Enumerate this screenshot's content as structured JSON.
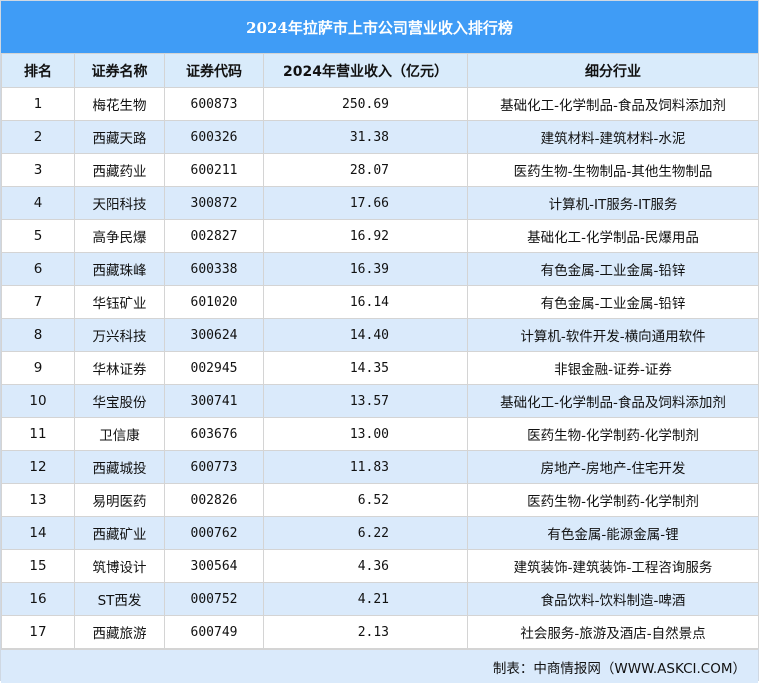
{
  "title": "2024年拉萨市上市公司营业收入排行榜",
  "columns": [
    "排名",
    "证券名称",
    "证券代码",
    "2024年营业收入（亿元）",
    "细分行业"
  ],
  "rows": [
    [
      "1",
      "梅花生物",
      "600873",
      "250.69",
      "基础化工-化学制品-食品及饲料添加剂"
    ],
    [
      "2",
      "西藏天路",
      "600326",
      "31.38",
      "建筑材料-建筑材料-水泥"
    ],
    [
      "3",
      "西藏药业",
      "600211",
      "28.07",
      "医药生物-生物制品-其他生物制品"
    ],
    [
      "4",
      "天阳科技",
      "300872",
      "17.66",
      "计算机-IT服务-IT服务"
    ],
    [
      "5",
      "高争民爆",
      "002827",
      "16.92",
      "基础化工-化学制品-民爆用品"
    ],
    [
      "6",
      "西藏珠峰",
      "600338",
      "16.39",
      "有色金属-工业金属-铅锌"
    ],
    [
      "7",
      "华钰矿业",
      "601020",
      "16.14",
      "有色金属-工业金属-铅锌"
    ],
    [
      "8",
      "万兴科技",
      "300624",
      "14.40",
      "计算机-软件开发-横向通用软件"
    ],
    [
      "9",
      "华林证券",
      "002945",
      "14.35",
      "非银金融-证券-证券"
    ],
    [
      "10",
      "华宝股份",
      "300741",
      "13.57",
      "基础化工-化学制品-食品及饲料添加剂"
    ],
    [
      "11",
      "卫信康",
      "603676",
      "13.00",
      "医药生物-化学制药-化学制剂"
    ],
    [
      "12",
      "西藏城投",
      "600773",
      "11.83",
      "房地产-房地产-住宅开发"
    ],
    [
      "13",
      "易明医药",
      "002826",
      "6.52",
      "医药生物-化学制药-化学制剂"
    ],
    [
      "14",
      "西藏矿业",
      "000762",
      "6.22",
      "有色金属-能源金属-锂"
    ],
    [
      "15",
      "筑博设计",
      "300564",
      "4.36",
      "建筑装饰-建筑装饰-工程咨询服务"
    ],
    [
      "16",
      "ST西发",
      "000752",
      "4.21",
      "食品饮料-饮料制造-啤酒"
    ],
    [
      "17",
      "西藏旅游",
      "600749",
      "2.13",
      "社会服务-旅游及酒店-自然景点"
    ]
  ],
  "footer": "制表：中商情报网（WWW.ASKCI.COM）",
  "colors": {
    "title_bg": "#3f9cf6",
    "header_bg": "#d9ebfb",
    "alt_row_bg": "#daeafb"
  }
}
